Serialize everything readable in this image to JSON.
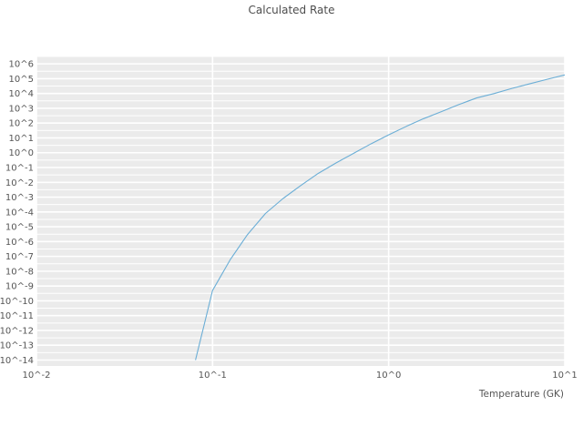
{
  "chart_data": {
    "type": "line",
    "title": "Calculated Rate",
    "xlabel": "Temperature (GK)",
    "ylabel": "",
    "x_scale": "log",
    "y_scale": "log",
    "x_range_log": [
      -2,
      1
    ],
    "y_range_log": [
      -14.4,
      6.5
    ],
    "grid": true,
    "legend": "none",
    "plot_bg_color": "#ebebeb",
    "grid_color": "#ffffff",
    "line_color": "#6baed6",
    "text_color": "#555555",
    "x_ticks": [
      {
        "log": -2,
        "label": "10^-2"
      },
      {
        "log": -1,
        "label": "10^-1"
      },
      {
        "log": 0,
        "label": "10^0"
      },
      {
        "log": 1,
        "label": "10^1"
      }
    ],
    "y_ticks": [
      {
        "log": 6,
        "label": "10^6"
      },
      {
        "log": 5,
        "label": "10^5"
      },
      {
        "log": 4,
        "label": "10^4"
      },
      {
        "log": 3,
        "label": "10^3"
      },
      {
        "log": 2,
        "label": "10^2"
      },
      {
        "log": 1,
        "label": "10^1"
      },
      {
        "log": 0,
        "label": "10^0"
      },
      {
        "log": -1,
        "label": "10^-1"
      },
      {
        "log": -2,
        "label": "10^-2"
      },
      {
        "log": -3,
        "label": "10^-3"
      },
      {
        "log": -4,
        "label": "10^-4"
      },
      {
        "log": -5,
        "label": "10^-5"
      },
      {
        "log": -6,
        "label": "10^-6"
      },
      {
        "log": -7,
        "label": "10^-7"
      },
      {
        "log": -8,
        "label": "10^-8"
      },
      {
        "log": -9,
        "label": "10^-9"
      },
      {
        "log": -10,
        "label": "10^-10"
      },
      {
        "log": -11,
        "label": "10^-11"
      },
      {
        "log": -12,
        "label": "10^-12"
      },
      {
        "log": -13,
        "label": "10^-13"
      },
      {
        "log": -14,
        "label": "10^-14"
      }
    ],
    "series": [
      {
        "name": "calculated-rate",
        "points": [
          [
            0.08,
            1e-14
          ],
          [
            0.09,
            3e-12
          ],
          [
            0.1,
            5e-10
          ],
          [
            0.126,
            6e-08
          ],
          [
            0.158,
            3e-06
          ],
          [
            0.2,
            8e-05
          ],
          [
            0.251,
            0.0008
          ],
          [
            0.316,
            0.006
          ],
          [
            0.398,
            0.04
          ],
          [
            0.501,
            0.2
          ],
          [
            0.631,
            0.9
          ],
          [
            0.794,
            4
          ],
          [
            1.0,
            16
          ],
          [
            1.26,
            60
          ],
          [
            1.58,
            200
          ],
          [
            2.0,
            600
          ],
          [
            2.51,
            1800
          ],
          [
            3.16,
            5000
          ],
          [
            3.98,
            10000
          ],
          [
            5.01,
            22000
          ],
          [
            6.31,
            45000
          ],
          [
            7.94,
            90000
          ],
          [
            10.0,
            180000
          ]
        ]
      }
    ]
  }
}
